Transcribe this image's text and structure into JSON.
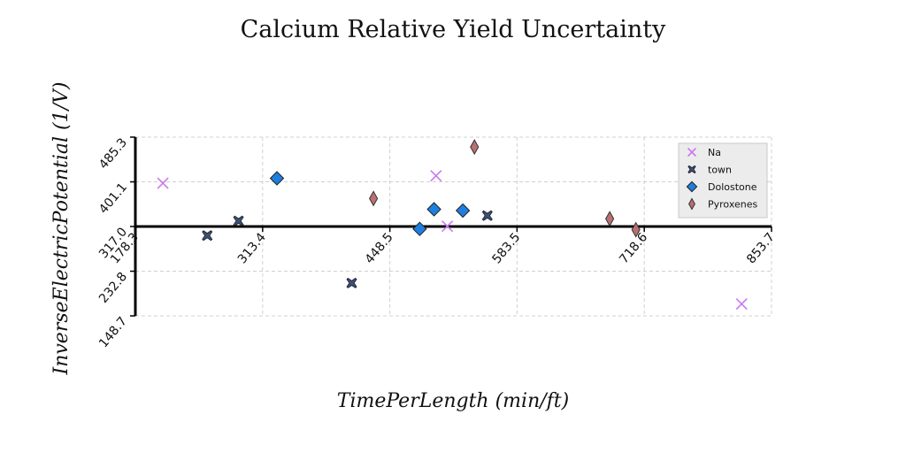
{
  "chart_data": {
    "type": "scatter",
    "title": "Calcium Relative Yield Uncertainty",
    "xlabel": "TimePerLength (min/ft)",
    "ylabel": "InverseElectricPotential (1/V)",
    "xlim": [
      178.3,
      853.7
    ],
    "ylim": [
      148.7,
      485.3
    ],
    "x_ticks": [
      "178.3",
      "313.4",
      "448.5",
      "583.5",
      "718.6",
      "853.7"
    ],
    "y_ticks": [
      "148.7",
      "232.8",
      "317.0",
      "401.1",
      "485.3"
    ],
    "grid": true,
    "legend_position": "top-right",
    "series": [
      {
        "name": "Na",
        "marker": "x",
        "color": "#cc77ee",
        "points": [
          [
            207.5,
            398.5
          ],
          [
            497.5,
            412.5
          ],
          [
            509.5,
            317.5
          ],
          [
            822.0,
            171.0
          ]
        ]
      },
      {
        "name": "town",
        "marker": "thick-x",
        "color": "#3d4f7a",
        "points": [
          [
            254.6,
            300.0
          ],
          [
            287.8,
            327.5
          ],
          [
            408.0,
            210.5
          ],
          [
            552.0,
            337.5
          ]
        ]
      },
      {
        "name": "Dolostone",
        "marker": "diamond",
        "color": "#1f7fe0",
        "points": [
          [
            328.6,
            407.8
          ],
          [
            480.2,
            312.5
          ],
          [
            495.4,
            349.5
          ],
          [
            526.0,
            347.0
          ]
        ]
      },
      {
        "name": "Pyroxenes",
        "marker": "thin-diamond",
        "color": "#b87070",
        "points": [
          [
            431.1,
            369.8
          ],
          [
            538.3,
            466.8
          ],
          [
            681.9,
            331.5
          ],
          [
            709.7,
            311.0
          ]
        ]
      }
    ]
  }
}
